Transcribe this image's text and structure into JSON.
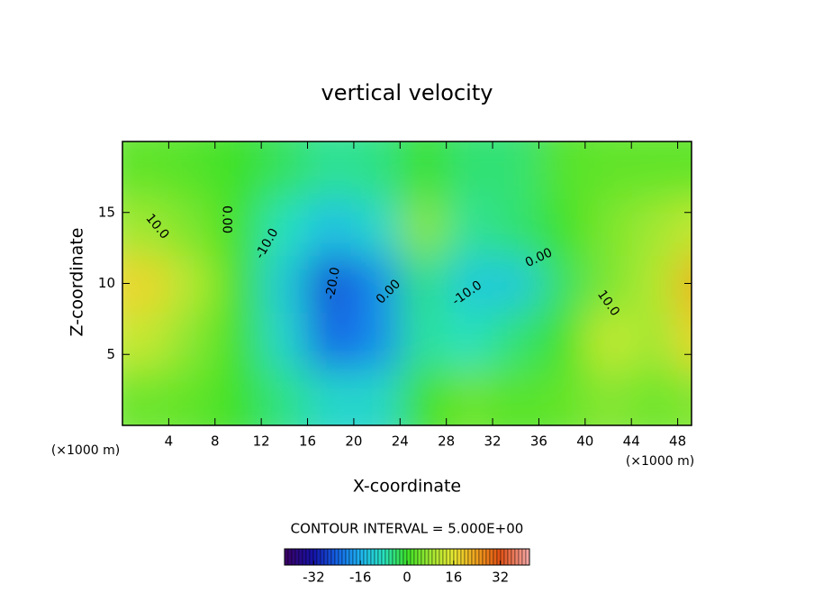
{
  "chart_data": {
    "type": "contour",
    "title": "vertical velocity",
    "x_label": "X-coordinate",
    "y_label": "Z-coordinate",
    "x_unit": "(×1000 m)",
    "y_unit": "(×1000 m)",
    "xlim": [
      0,
      49.2
    ],
    "ylim": [
      0,
      20
    ],
    "xticks": [
      4,
      8,
      12,
      16,
      20,
      24,
      28,
      32,
      36,
      40,
      44,
      48
    ],
    "yticks": [
      5,
      10,
      15
    ],
    "field": {
      "x": [
        2,
        6,
        10,
        14,
        18,
        22,
        26,
        30,
        34,
        38,
        42,
        46,
        50
      ],
      "z": [
        2,
        6,
        10,
        14,
        18
      ],
      "values": [
        [
          4,
          3,
          0,
          -5,
          -10,
          -10,
          0,
          4,
          2,
          3,
          6,
          4,
          6
        ],
        [
          12,
          6,
          0,
          -10,
          -24,
          -20,
          -6,
          -8,
          -4,
          0,
          12,
          8,
          18
        ],
        [
          18,
          10,
          0,
          -12,
          -26,
          -20,
          -5,
          -12,
          -12,
          -3,
          5,
          10,
          22
        ],
        [
          8,
          5,
          0,
          -8,
          -14,
          -10,
          6,
          -6,
          -4,
          0,
          5,
          8,
          12
        ],
        [
          3,
          2,
          0,
          -3,
          -6,
          -5,
          0,
          -4,
          -4,
          2,
          3,
          3,
          3
        ]
      ]
    },
    "contour_labels": [
      {
        "value": 10,
        "label": "10.0"
      },
      {
        "value": 0,
        "label": "0.00"
      },
      {
        "value": -10,
        "label": "-10.0"
      },
      {
        "value": -20,
        "label": "-20.0"
      },
      {
        "value": 0,
        "label": "0.00"
      },
      {
        "value": -10,
        "label": "-10.0"
      },
      {
        "value": 0,
        "label": "0.00"
      },
      {
        "value": 10,
        "label": "10.0"
      }
    ],
    "contour_interval": "CONTOUR INTERVAL = 5.000E+00",
    "clim": [
      -42,
      42
    ],
    "colorbar_ticks": [
      -32,
      -16,
      0,
      16,
      32
    ]
  }
}
